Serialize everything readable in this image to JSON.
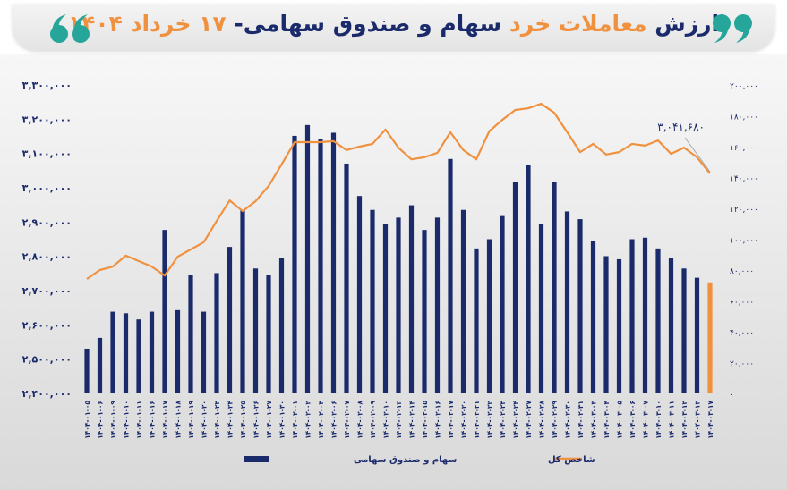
{
  "chart_data": {
    "type": "bar_line",
    "title_parts": [
      "ارزش",
      "معاملات خرد",
      "سهام و صندوق سهامی-",
      "۱۷ خرداد ۱۴۰۴"
    ],
    "categories": [
      "۱۴۰۴-۰۱-۰۵",
      "۱۴۰۴-۰۱-۰۶",
      "۱۴۰۴-۰۱-۰۹",
      "۱۴۰۴-۰۱-۱۰",
      "۱۴۰۴-۰۱-۱۱",
      "۱۴۰۴-۰۱-۱۶",
      "۱۴۰۴-۰۱-۱۷",
      "۱۴۰۴-۰۱-۱۸",
      "۱۴۰۴-۰۱-۱۹",
      "۱۴۰۴-۰۱-۲۰",
      "۱۴۰۴-۰۱-۲۳",
      "۱۴۰۴-۰۱-۲۴",
      "۱۴۰۴-۰۱-۲۵",
      "۱۴۰۴-۰۱-۲۶",
      "۱۴۰۴-۰۱-۲۷",
      "۱۴۰۴-۰۱-۳۰",
      "۱۴۰۴-۰۲-۰۱",
      "۱۴۰۴-۰۲-۰۲",
      "۱۴۰۴-۰۲-۰۳",
      "۱۴۰۴-۰۲-۰۶",
      "۱۴۰۴-۰۲-۰۷",
      "۱۴۰۴-۰۲-۰۸",
      "۱۴۰۴-۰۲-۰۹",
      "۱۴۰۴-۰۲-۱۰",
      "۱۴۰۴-۰۲-۱۳",
      "۱۴۰۴-۰۲-۱۴",
      "۱۴۰۴-۰۲-۱۵",
      "۱۴۰۴-۰۲-۱۶",
      "۱۴۰۴-۰۲-۱۷",
      "۱۴۰۴-۰۲-۲۰",
      "۱۴۰۴-۰۲-۲۱",
      "۱۴۰۴-۰۲-۲۲",
      "۱۴۰۴-۰۲-۲۳",
      "۱۴۰۴-۰۲-۲۴",
      "۱۴۰۴-۰۲-۲۷",
      "۱۴۰۴-۰۲-۲۸",
      "۱۴۰۴-۰۲-۲۹",
      "۱۴۰۴-۰۲-۳۰",
      "۱۴۰۴-۰۲-۳۱",
      "۱۴۰۴-۰۳-۰۳",
      "۱۴۰۴-۰۳-۰۴",
      "۱۴۰۴-۰۳-۰۵",
      "۱۴۰۴-۰۳-۰۶",
      "۱۴۰۴-۰۳-۰۷",
      "۱۴۰۴-۰۳-۱۰",
      "۱۴۰۴-۰۳-۱۱",
      "۱۴۰۴-۰۳-۱۲",
      "۱۴۰۴-۰۳-۱۳",
      "۱۴۰۴-۰۳-۱۷"
    ],
    "series": [
      {
        "name": "سهام و صندوق سهامی",
        "type": "bar",
        "axis": "y2",
        "color": "#1b2a6b",
        "colors": [
          "#1b2a6b",
          "#1b2a6b",
          "#1b2a6b",
          "#1b2a6b",
          "#1b2a6b",
          "#1b2a6b",
          "#1b2a6b",
          "#1b2a6b",
          "#1b2a6b",
          "#1b2a6b",
          "#1b2a6b",
          "#1b2a6b",
          "#1b2a6b",
          "#1b2a6b",
          "#1b2a6b",
          "#1b2a6b",
          "#1b2a6b",
          "#1b2a6b",
          "#1b2a6b",
          "#1b2a6b",
          "#1b2a6b",
          "#1b2a6b",
          "#1b2a6b",
          "#1b2a6b",
          "#1b2a6b",
          "#1b2a6b",
          "#1b2a6b",
          "#1b2a6b",
          "#1b2a6b",
          "#1b2a6b",
          "#1b2a6b",
          "#1b2a6b",
          "#1b2a6b",
          "#1b2a6b",
          "#1b2a6b",
          "#1b2a6b",
          "#1b2a6b",
          "#1b2a6b",
          "#1b2a6b",
          "#1b2a6b",
          "#1b2a6b",
          "#1b2a6b",
          "#1b2a6b",
          "#1b2a6b",
          "#1b2a6b",
          "#1b2a6b",
          "#1b2a6b",
          "#1b2a6b",
          "#f0913f"
        ],
        "values": [
          29000,
          36000,
          53000,
          52000,
          48000,
          53000,
          106000,
          54000,
          77000,
          53000,
          78000,
          95000,
          119000,
          81000,
          77000,
          88000,
          167000,
          174000,
          165000,
          169000,
          149000,
          128000,
          119000,
          110000,
          114000,
          122000,
          106000,
          114000,
          152000,
          119000,
          94000,
          100000,
          115000,
          137000,
          148000,
          110000,
          137000,
          118000,
          113000,
          99000,
          89000,
          87000,
          100000,
          101000,
          94000,
          88000,
          81000,
          75000,
          72000
        ]
      },
      {
        "name": "شاخص کل",
        "type": "line",
        "axis": "y",
        "color": "#f0913f",
        "values": [
          2734000,
          2760000,
          2770000,
          2802000,
          2786000,
          2770000,
          2744000,
          2799000,
          2820000,
          2841000,
          2903000,
          2963000,
          2932000,
          2961000,
          3005000,
          3068000,
          3133000,
          3133000,
          3133000,
          3136000,
          3110000,
          3120000,
          3128000,
          3170000,
          3117000,
          3083000,
          3089000,
          3102000,
          3162000,
          3110000,
          3083000,
          3165000,
          3198000,
          3227000,
          3232000,
          3245000,
          3219000,
          3162000,
          3104000,
          3128000,
          3097000,
          3104000,
          3128000,
          3123000,
          3138000,
          3099000,
          3117000,
          3089000,
          3041680
        ],
        "value_labels": [
          null,
          null,
          null,
          null,
          null,
          null,
          null,
          null,
          null,
          null,
          null,
          null,
          null,
          null,
          null,
          null,
          null,
          null,
          null,
          null,
          null,
          null,
          null,
          null,
          null,
          null,
          null,
          null,
          null,
          null,
          null,
          null,
          null,
          null,
          null,
          null,
          null,
          null,
          null,
          null,
          null,
          null,
          null,
          null,
          null,
          null,
          null,
          null,
          "۳,۰۴۱,۶۸۰"
        ]
      }
    ],
    "ylim": [
      2400000,
      3300000
    ],
    "yticks": [
      {
        "value": 2400000,
        "label": "۲,۴۰۰,۰۰۰"
      },
      {
        "value": 2500000,
        "label": "۲,۵۰۰,۰۰۰"
      },
      {
        "value": 2600000,
        "label": "۲,۶۰۰,۰۰۰"
      },
      {
        "value": 2700000,
        "label": "۲,۷۰۰,۰۰۰"
      },
      {
        "value": 2800000,
        "label": "۲,۸۰۰,۰۰۰"
      },
      {
        "value": 2900000,
        "label": "۲,۹۰۰,۰۰۰"
      },
      {
        "value": 3000000,
        "label": "۳,۰۰۰,۰۰۰"
      },
      {
        "value": 3100000,
        "label": "۳,۱۰۰,۰۰۰"
      },
      {
        "value": 3200000,
        "label": "۳,۲۰۰,۰۰۰"
      },
      {
        "value": 3300000,
        "label": "۳,۳۰۰,۰۰۰"
      }
    ],
    "y2lim": [
      0,
      200000
    ],
    "y2ticks": [
      {
        "value": 0,
        "label": "۰"
      },
      {
        "value": 20000,
        "label": "۲۰,۰۰۰"
      },
      {
        "value": 40000,
        "label": "۴۰,۰۰۰"
      },
      {
        "value": 60000,
        "label": "۶۰,۰۰۰"
      },
      {
        "value": 80000,
        "label": "۸۰,۰۰۰"
      },
      {
        "value": 100000,
        "label": "۱۰۰,۰۰۰"
      },
      {
        "value": 120000,
        "label": "۱۲۰,۰۰۰"
      },
      {
        "value": 140000,
        "label": "۱۴۰,۰۰۰"
      },
      {
        "value": 160000,
        "label": "۱۶۰,۰۰۰"
      },
      {
        "value": 180000,
        "label": "۱۸۰,۰۰۰"
      },
      {
        "value": 200000,
        "label": "۲۰۰,۰۰۰"
      }
    ],
    "grid": false,
    "legend": "bottom"
  }
}
